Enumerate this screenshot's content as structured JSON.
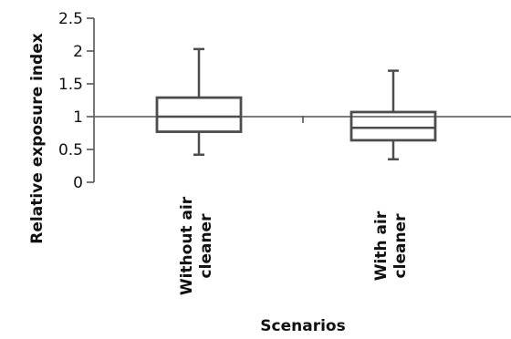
{
  "chart_data": {
    "type": "box",
    "xlabel": "Scenarios",
    "ylabel": "Relative exposure index",
    "ylim": [
      0,
      2.5
    ],
    "yticks": [
      "0",
      "0.5",
      "1",
      "1.5",
      "2",
      "2.5"
    ],
    "yticks_values": [
      0,
      0.5,
      1,
      1.5,
      2,
      2.5
    ],
    "reference_line": 1,
    "categories": [
      [
        "Without air",
        "cleaner"
      ],
      [
        "With air",
        "cleaner"
      ]
    ],
    "boxes": [
      {
        "min": 0.42,
        "q1": 0.77,
        "median": 1.0,
        "q3": 1.29,
        "max": 2.03
      },
      {
        "min": 0.35,
        "q1": 0.64,
        "median": 0.83,
        "q3": 1.07,
        "max": 1.7
      }
    ],
    "colors": {
      "box": "#4d4d4d",
      "axis": "#555555",
      "reference": "#6b6b6b"
    }
  }
}
